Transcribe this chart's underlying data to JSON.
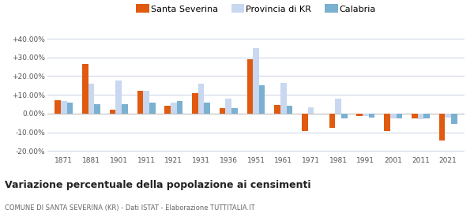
{
  "years": [
    1871,
    1881,
    1901,
    1911,
    1921,
    1931,
    1936,
    1951,
    1961,
    1971,
    1981,
    1991,
    2001,
    2011,
    2021
  ],
  "santa_severina": [
    7.0,
    26.5,
    2.0,
    12.0,
    4.0,
    11.0,
    3.0,
    29.0,
    4.5,
    -9.5,
    -7.5,
    -1.5,
    -9.5,
    -2.5,
    -14.5
  ],
  "provincia_kr": [
    6.5,
    16.0,
    17.5,
    12.0,
    6.0,
    16.0,
    8.0,
    35.0,
    16.5,
    3.5,
    8.0,
    -1.5,
    -2.5,
    -3.0,
    -2.0
  ],
  "calabria": [
    6.0,
    5.0,
    5.0,
    6.0,
    6.5,
    6.0,
    3.0,
    15.0,
    4.0,
    null,
    -2.5,
    -2.0,
    -2.5,
    -2.5,
    -5.5
  ],
  "color_santa": "#e05a10",
  "color_provincia": "#c8d8f0",
  "color_calabria": "#7ab0d0",
  "title": "Variazione percentuale della popolazione ai censimenti",
  "subtitle": "COMUNE DI SANTA SEVERINA (KR) - Dati ISTAT - Elaborazione TUTTITALIA.IT",
  "yticks": [
    -20,
    -10,
    0,
    10,
    20,
    30,
    40
  ],
  "ytick_labels": [
    "-20.00%",
    "-10.00%",
    "0.00%",
    "+10.00%",
    "+20.00%",
    "+30.00%",
    "+40.00%"
  ],
  "ylim": [
    -22,
    43
  ],
  "legend_labels": [
    "Santa Severina",
    "Provincia di KR",
    "Calabria"
  ],
  "background_color": "#ffffff",
  "grid_color": "#d0d8e8"
}
